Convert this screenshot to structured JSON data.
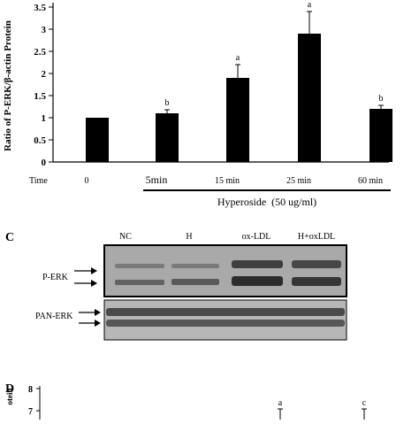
{
  "chart_data": [
    {
      "type": "bar",
      "ylabel": "Ratio of P-ERK/β-actin Protein",
      "ylim": [
        0,
        3.5
      ],
      "yticks": [
        "0",
        "0.5",
        "1",
        "1.5",
        "2",
        "2.5",
        "3",
        "3.5"
      ],
      "categories": [
        "0",
        "5min",
        "15 min",
        "25 min",
        "60 min"
      ],
      "values": [
        1.0,
        1.1,
        1.9,
        2.9,
        1.2
      ],
      "errors": [
        0,
        0.08,
        0.3,
        0.5,
        0.08
      ],
      "annotations": [
        "",
        "b",
        "a",
        "a",
        "b"
      ],
      "bar_color": "#000000",
      "time_label": "Time",
      "treatment_label": "Hyperoside  (50 ug/ml)"
    },
    {
      "type": "bar",
      "ylabel_partial": "otein",
      "yticks_visible": [
        "8",
        "7"
      ],
      "annotations_visible": [
        "a",
        "c"
      ]
    }
  ],
  "blot": {
    "panel_label": "C",
    "lanes": [
      "NC",
      "H",
      "ox-LDL",
      "H+oxLDL"
    ],
    "rows": [
      "P-ERK",
      "PAN-ERK"
    ]
  },
  "panel_d_label": "D"
}
